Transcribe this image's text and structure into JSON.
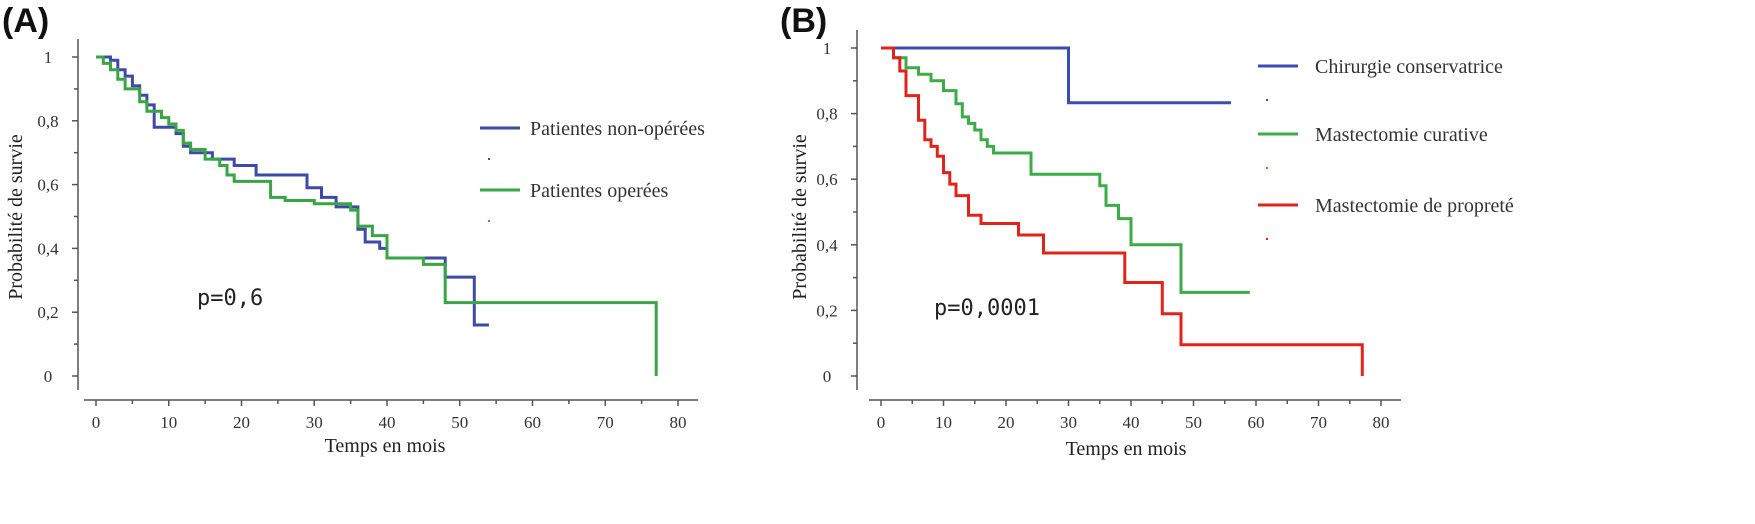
{
  "chart_data": [
    {
      "type": "line",
      "panel_label": "(A)",
      "xlabel": "Temps en mois",
      "ylabel": "Probabilité de survie",
      "xlim": [
        0,
        80
      ],
      "ylim": [
        0,
        1
      ],
      "xticks": [
        "0",
        "10",
        "20",
        "30",
        "40",
        "50",
        "60",
        "70",
        "80"
      ],
      "yticks": [
        "0",
        "0,2",
        "0,4",
        "0,6",
        "0,8",
        "1"
      ],
      "annotation": "p=0,6",
      "series": [
        {
          "name": "Patientes non-opérées",
          "color": "#3e4aa6",
          "points": [
            [
              0,
              1
            ],
            [
              2,
              1
            ],
            [
              2,
              0.99
            ],
            [
              3,
              0.99
            ],
            [
              3,
              0.96
            ],
            [
              4,
              0.96
            ],
            [
              4,
              0.94
            ],
            [
              5,
              0.94
            ],
            [
              5,
              0.91
            ],
            [
              6,
              0.91
            ],
            [
              6,
              0.88
            ],
            [
              7,
              0.88
            ],
            [
              7,
              0.85
            ],
            [
              8,
              0.85
            ],
            [
              8,
              0.78
            ],
            [
              11,
              0.78
            ],
            [
              11,
              0.76
            ],
            [
              12,
              0.76
            ],
            [
              12,
              0.72
            ],
            [
              13,
              0.72
            ],
            [
              13,
              0.7
            ],
            [
              16,
              0.7
            ],
            [
              16,
              0.68
            ],
            [
              19,
              0.68
            ],
            [
              19,
              0.66
            ],
            [
              22,
              0.66
            ],
            [
              22,
              0.63
            ],
            [
              29,
              0.63
            ],
            [
              29,
              0.59
            ],
            [
              31,
              0.59
            ],
            [
              31,
              0.56
            ],
            [
              33,
              0.56
            ],
            [
              33,
              0.53
            ],
            [
              36,
              0.53
            ],
            [
              36,
              0.46
            ],
            [
              37,
              0.46
            ],
            [
              37,
              0.42
            ],
            [
              39,
              0.42
            ],
            [
              39,
              0.4
            ],
            [
              40,
              0.4
            ],
            [
              40,
              0.37
            ],
            [
              48,
              0.37
            ],
            [
              48,
              0.31
            ],
            [
              52,
              0.31
            ],
            [
              52,
              0.16
            ],
            [
              54,
              0.16
            ]
          ]
        },
        {
          "name": "Patientes operées",
          "color": "#3aa545",
          "points": [
            [
              0,
              1
            ],
            [
              1,
              1
            ],
            [
              1,
              0.98
            ],
            [
              2,
              0.98
            ],
            [
              2,
              0.96
            ],
            [
              3,
              0.96
            ],
            [
              3,
              0.93
            ],
            [
              4,
              0.93
            ],
            [
              4,
              0.9
            ],
            [
              6,
              0.9
            ],
            [
              6,
              0.86
            ],
            [
              7,
              0.86
            ],
            [
              7,
              0.83
            ],
            [
              9,
              0.83
            ],
            [
              9,
              0.81
            ],
            [
              10,
              0.81
            ],
            [
              10,
              0.79
            ],
            [
              11,
              0.79
            ],
            [
              11,
              0.77
            ],
            [
              12,
              0.77
            ],
            [
              12,
              0.73
            ],
            [
              13,
              0.73
            ],
            [
              13,
              0.71
            ],
            [
              15,
              0.71
            ],
            [
              15,
              0.68
            ],
            [
              17,
              0.68
            ],
            [
              17,
              0.66
            ],
            [
              18,
              0.66
            ],
            [
              18,
              0.63
            ],
            [
              19,
              0.63
            ],
            [
              19,
              0.61
            ],
            [
              24,
              0.61
            ],
            [
              24,
              0.56
            ],
            [
              26,
              0.56
            ],
            [
              26,
              0.55
            ],
            [
              30,
              0.55
            ],
            [
              30,
              0.54
            ],
            [
              35,
              0.54
            ],
            [
              35,
              0.52
            ],
            [
              36,
              0.52
            ],
            [
              36,
              0.47
            ],
            [
              38,
              0.47
            ],
            [
              38,
              0.44
            ],
            [
              40,
              0.44
            ],
            [
              40,
              0.37
            ],
            [
              45,
              0.37
            ],
            [
              45,
              0.35
            ],
            [
              48,
              0.35
            ],
            [
              48,
              0.23
            ],
            [
              77,
              0.23
            ],
            [
              77,
              0.0
            ]
          ]
        }
      ]
    },
    {
      "type": "line",
      "panel_label": "(B)",
      "xlabel": "Temps en mois",
      "ylabel": "Probabilité de survie",
      "xlim": [
        0,
        80
      ],
      "ylim": [
        0,
        1
      ],
      "xticks": [
        "0",
        "10",
        "20",
        "30",
        "40",
        "50",
        "60",
        "70",
        "80"
      ],
      "yticks": [
        "0",
        "0,2",
        "0,4",
        "0,6",
        "0,8",
        "1"
      ],
      "annotation": "p=0,0001",
      "series": [
        {
          "name": "Chirurgie conservatrice",
          "color": "#3d4cb3",
          "points": [
            [
              0,
              1
            ],
            [
              30,
              1
            ],
            [
              30,
              0.833
            ],
            [
              56,
              0.833
            ]
          ]
        },
        {
          "name": "Mastectomie curative",
          "color": "#3cab48",
          "points": [
            [
              0,
              1
            ],
            [
              2,
              1
            ],
            [
              2,
              0.97
            ],
            [
              4,
              0.97
            ],
            [
              4,
              0.94
            ],
            [
              6,
              0.94
            ],
            [
              6,
              0.92
            ],
            [
              8,
              0.92
            ],
            [
              8,
              0.9
            ],
            [
              10,
              0.9
            ],
            [
              10,
              0.87
            ],
            [
              12,
              0.87
            ],
            [
              12,
              0.83
            ],
            [
              13,
              0.83
            ],
            [
              13,
              0.79
            ],
            [
              14,
              0.79
            ],
            [
              14,
              0.77
            ],
            [
              15,
              0.77
            ],
            [
              15,
              0.75
            ],
            [
              16,
              0.75
            ],
            [
              16,
              0.72
            ],
            [
              17,
              0.72
            ],
            [
              17,
              0.7
            ],
            [
              18,
              0.7
            ],
            [
              18,
              0.68
            ],
            [
              24,
              0.68
            ],
            [
              24,
              0.615
            ],
            [
              35,
              0.615
            ],
            [
              35,
              0.58
            ],
            [
              36,
              0.58
            ],
            [
              36,
              0.52
            ],
            [
              38,
              0.52
            ],
            [
              38,
              0.48
            ],
            [
              40,
              0.48
            ],
            [
              40,
              0.4
            ],
            [
              48,
              0.4
            ],
            [
              48,
              0.255
            ],
            [
              59,
              0.255
            ]
          ]
        },
        {
          "name": "Mastectomie de propreté",
          "color": "#e2231a",
          "points": [
            [
              0,
              1
            ],
            [
              2,
              1
            ],
            [
              2,
              0.97
            ],
            [
              3,
              0.97
            ],
            [
              3,
              0.93
            ],
            [
              4,
              0.93
            ],
            [
              4,
              0.855
            ],
            [
              6,
              0.855
            ],
            [
              6,
              0.78
            ],
            [
              7,
              0.78
            ],
            [
              7,
              0.72
            ],
            [
              8,
              0.72
            ],
            [
              8,
              0.7
            ],
            [
              9,
              0.7
            ],
            [
              9,
              0.67
            ],
            [
              10,
              0.67
            ],
            [
              10,
              0.62
            ],
            [
              11,
              0.62
            ],
            [
              11,
              0.585
            ],
            [
              12,
              0.585
            ],
            [
              12,
              0.55
            ],
            [
              14,
              0.55
            ],
            [
              14,
              0.49
            ],
            [
              16,
              0.49
            ],
            [
              16,
              0.465
            ],
            [
              22,
              0.465
            ],
            [
              22,
              0.43
            ],
            [
              26,
              0.43
            ],
            [
              26,
              0.375
            ],
            [
              39,
              0.375
            ],
            [
              39,
              0.285
            ],
            [
              45,
              0.285
            ],
            [
              45,
              0.19
            ],
            [
              48,
              0.19
            ],
            [
              48,
              0.095
            ],
            [
              77,
              0.095
            ],
            [
              77,
              0.0
            ]
          ]
        }
      ]
    }
  ]
}
